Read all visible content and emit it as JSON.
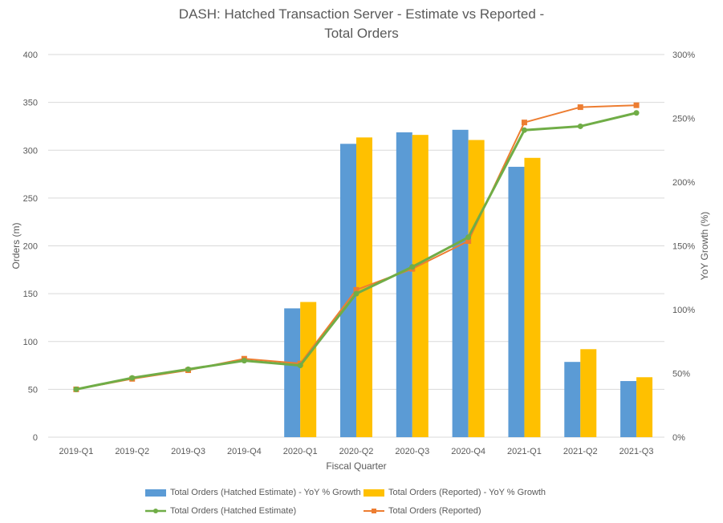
{
  "chart_data": {
    "type": "bar",
    "title_line1": "DASH: Hatched Transaction Server - Estimate vs Reported -",
    "title_line2": "Total Orders",
    "xlabel": "Fiscal Quarter",
    "ylabel": "Orders (m)",
    "y2label": "YoY Growth (%)",
    "ylim": [
      0,
      400
    ],
    "y_ticks": [
      0,
      50,
      100,
      150,
      200,
      250,
      300,
      350,
      400
    ],
    "y2lim": [
      0,
      300
    ],
    "y2_ticks": [
      "0%",
      "50%",
      "100%",
      "150%",
      "200%",
      "250%",
      "300%"
    ],
    "grid": true,
    "legend_position": "bottom",
    "categories": [
      "2019-Q1",
      "2019-Q2",
      "2019-Q3",
      "2019-Q4",
      "2020-Q1",
      "2020-Q2",
      "2020-Q3",
      "2020-Q4",
      "2021-Q1",
      "2021-Q2",
      "2021-Q3"
    ],
    "series": [
      {
        "name": "Total Orders (Hatched Estimate) - YoY % Growth",
        "type": "bar",
        "axis": "right",
        "color": "#5B9BD5",
        "values": [
          null,
          null,
          null,
          null,
          101,
          230,
          239,
          241,
          212,
          59,
          44
        ]
      },
      {
        "name": "Total Orders (Reported) - YoY % Growth",
        "type": "bar",
        "axis": "right",
        "color": "#FFC000",
        "values": [
          null,
          null,
          null,
          null,
          106,
          235,
          237,
          233,
          219,
          69,
          47
        ]
      },
      {
        "name": "Total Orders (Hatched Estimate)",
        "type": "line",
        "axis": "left",
        "color": "#70AD47",
        "marker": "circle",
        "values": [
          50,
          62,
          71,
          80,
          75,
          150,
          178,
          209,
          321,
          325,
          339
        ]
      },
      {
        "name": "Total Orders (Reported)",
        "type": "line",
        "axis": "left",
        "color": "#ED7D31",
        "marker": "square",
        "values": [
          50,
          61,
          70,
          82,
          77,
          154,
          176,
          205,
          329,
          345,
          347
        ]
      }
    ]
  }
}
